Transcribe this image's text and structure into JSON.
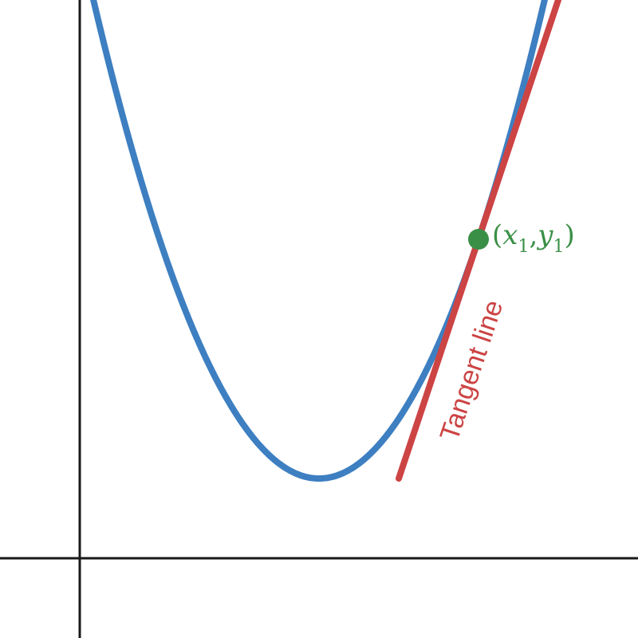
{
  "colors": {
    "axis": "#1a1a1a",
    "curve": "#3d7fc1",
    "tangent": "#cc4444",
    "point": "#3a8f46"
  },
  "point_label": {
    "open": "(",
    "x": "x",
    "x_sub": "1",
    "comma": ",",
    "y": "y",
    "y_sub": "1",
    "close": ")"
  },
  "tangent_label": "Tangent line"
}
